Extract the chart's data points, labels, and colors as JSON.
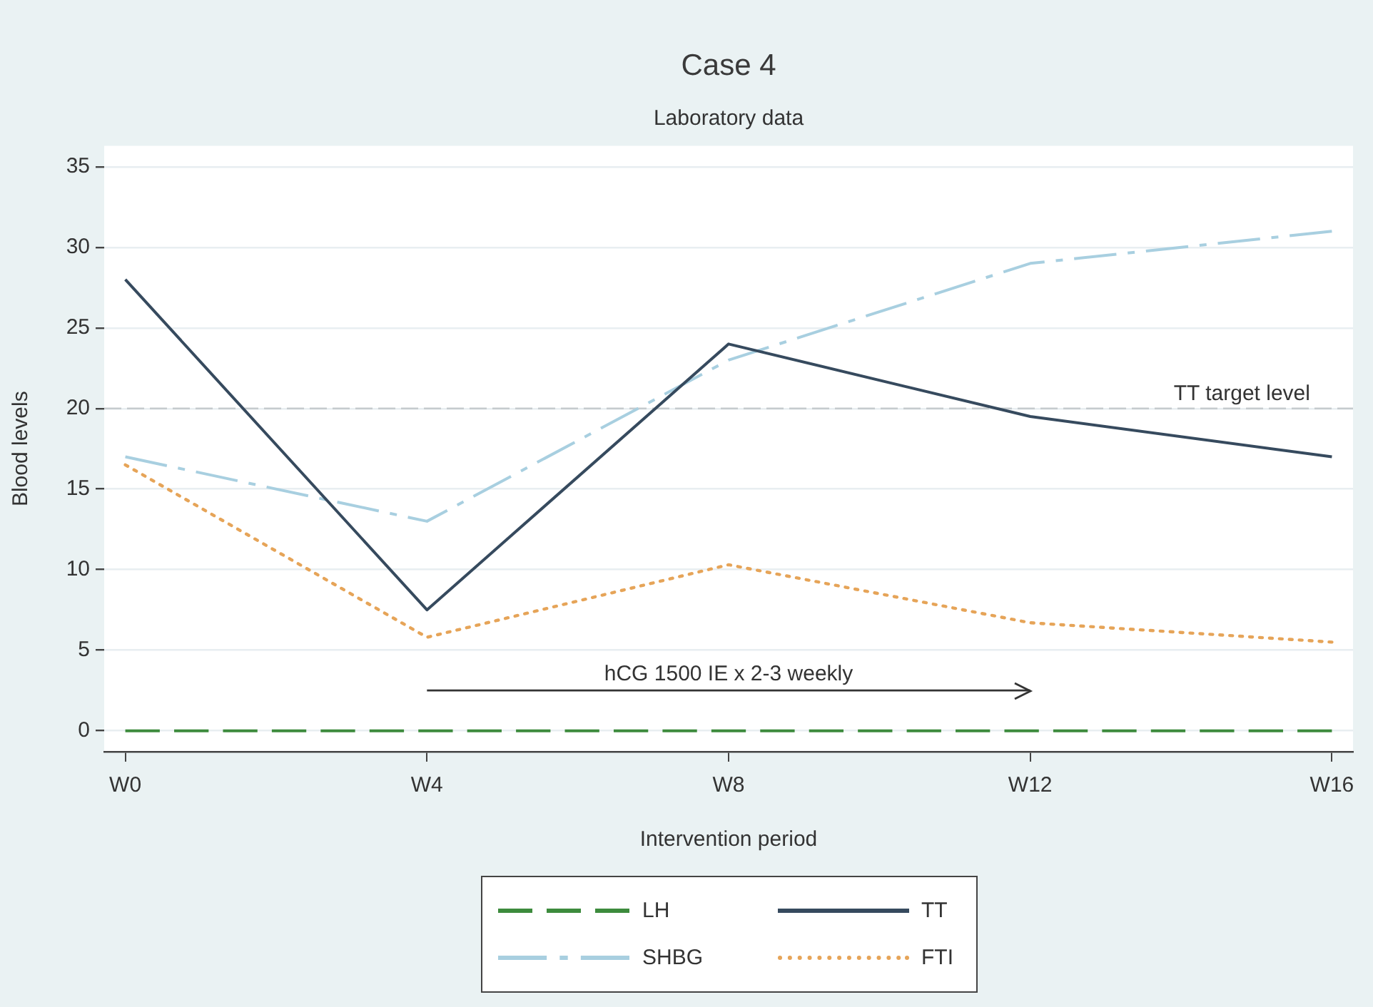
{
  "chart_data": {
    "type": "line",
    "title": "Case 4",
    "subtitle": "Laboratory data",
    "xlabel": "Intervention period",
    "ylabel": "Blood levels",
    "categories": [
      "W0",
      "W4",
      "W8",
      "W12",
      "W16"
    ],
    "series": [
      {
        "name": "LH",
        "color": "#3d8b3d",
        "line_style": "dashed",
        "values": [
          0,
          0,
          0,
          0,
          0
        ]
      },
      {
        "name": "TT",
        "color": "#364a5e",
        "line_style": "solid",
        "values": [
          28,
          7.5,
          24,
          19.5,
          17
        ]
      },
      {
        "name": "SHBG",
        "color": "#a8cfe0",
        "line_style": "dashdot",
        "values": [
          17,
          13,
          23,
          29,
          31
        ]
      },
      {
        "name": "FTI",
        "color": "#e6a458",
        "line_style": "dotted",
        "values": [
          16.5,
          5.8,
          10.3,
          6.7,
          5.5
        ]
      },
      {
        "color": "#333333",
        "line_style": "solid",
        "values": [
          null,
          2.5,
          2.5,
          2.5,
          null
        ]
      }
    ],
    "ylim": [
      -1.3,
      36.3
    ],
    "yticks": [
      0,
      5,
      10,
      15,
      20,
      25,
      30,
      35
    ],
    "ref_lines": [
      {
        "axis": "y",
        "value": 20,
        "label": "TT target level",
        "color": "#c5cbce",
        "line_style": "dashed"
      }
    ],
    "annotations": [
      {
        "text": "hCG 1500 IE x 2-3 weekly",
        "x": "W8",
        "y": 2.5
      }
    ],
    "grid": "y",
    "legend": "bottom",
    "marker": "none"
  }
}
